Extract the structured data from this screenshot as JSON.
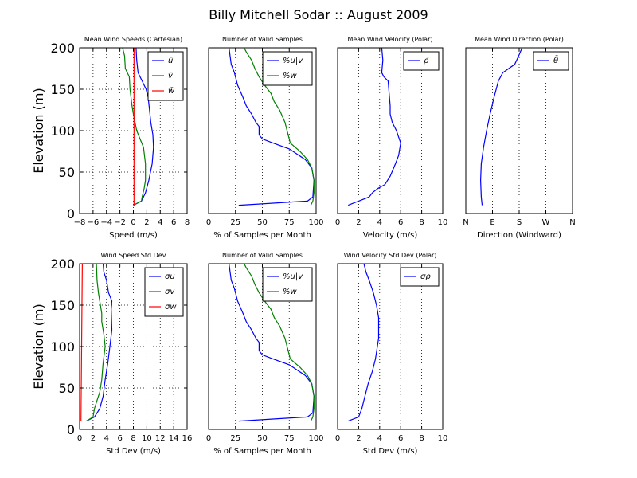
{
  "figure": {
    "title": "Billy Mitchell Sodar :: August 2009"
  },
  "colors": {
    "blue": "#0000ff",
    "green": "#008000",
    "red": "#ff0000"
  },
  "chart_data": [
    {
      "id": "p1",
      "type": "line",
      "title": "Mean Wind Speeds (Cartesian)",
      "xlabel": "Speed (m/s)",
      "ylabel": "Elevation (m)",
      "xlim": [
        -8,
        8
      ],
      "ylim": [
        0,
        200
      ],
      "xticks": [
        -8,
        -6,
        -4,
        -2,
        0,
        2,
        4,
        6,
        8
      ],
      "xtick_labels": [
        "−8",
        "−6",
        "−4",
        "−2",
        "0",
        "2",
        "4",
        "6",
        "8"
      ],
      "yticks": [
        0,
        50,
        100,
        150,
        200
      ],
      "ytick_labels": [
        "0",
        "50",
        "100",
        "150",
        "200"
      ],
      "legend": "top-right",
      "series": [
        {
          "name": "ū",
          "color": "#0000ff",
          "points": [
            [
              0,
              10
            ],
            [
              1.2,
              15
            ],
            [
              1.8,
              25
            ],
            [
              2.3,
              40
            ],
            [
              2.8,
              60
            ],
            [
              3.0,
              80
            ],
            [
              2.9,
              95
            ],
            [
              2.6,
              110
            ],
            [
              2.4,
              125
            ],
            [
              2.2,
              140
            ],
            [
              1.9,
              150
            ],
            [
              1.3,
              160
            ],
            [
              0.7,
              170
            ],
            [
              0.5,
              185
            ],
            [
              0.4,
              200
            ]
          ]
        },
        {
          "name": "v̄",
          "color": "#008000",
          "points": [
            [
              0,
              10
            ],
            [
              1.2,
              15
            ],
            [
              1.3,
              20
            ],
            [
              1.6,
              30
            ],
            [
              1.8,
              40
            ],
            [
              1.8,
              60
            ],
            [
              1.5,
              80
            ],
            [
              1.0,
              90
            ],
            [
              0.5,
              100
            ],
            [
              0,
              120
            ],
            [
              -0.2,
              130
            ],
            [
              -0.5,
              150
            ],
            [
              -0.6,
              165
            ],
            [
              -1.2,
              175
            ],
            [
              -1.3,
              190
            ],
            [
              -1.6,
              200
            ]
          ]
        },
        {
          "name": "w̄",
          "color": "#ff0000",
          "points": [
            [
              0.1,
              10
            ],
            [
              0.1,
              50
            ],
            [
              0.1,
              100
            ],
            [
              0.1,
              150
            ],
            [
              0.1,
              200
            ]
          ]
        }
      ]
    },
    {
      "id": "p2",
      "type": "line",
      "title": "Number of Valid Samples",
      "xlabel": "% of Samples per Month",
      "ylabel": "",
      "xlim": [
        0,
        100
      ],
      "ylim": [
        0,
        200
      ],
      "xticks": [
        0,
        25,
        50,
        75,
        100
      ],
      "xtick_labels": [
        "0",
        "25",
        "50",
        "75",
        "100"
      ],
      "yticks": [],
      "ytick_labels": [],
      "legend": "top-right",
      "series": [
        {
          "name": "%u|v",
          "color": "#0000ff",
          "points": [
            [
              28,
              10
            ],
            [
              92,
              15
            ],
            [
              97,
              20
            ],
            [
              98,
              40
            ],
            [
              96,
              55
            ],
            [
              90,
              65
            ],
            [
              75,
              78
            ],
            [
              60,
              85
            ],
            [
              50,
              90
            ],
            [
              47,
              95
            ],
            [
              47,
              105
            ],
            [
              44,
              110
            ],
            [
              40,
              120
            ],
            [
              35,
              130
            ],
            [
              32,
              140
            ],
            [
              27,
              155
            ],
            [
              24,
              170
            ],
            [
              21,
              180
            ],
            [
              20,
              190
            ],
            [
              19,
              200
            ]
          ]
        },
        {
          "name": "%w",
          "color": "#008000",
          "points": [
            [
              95,
              10
            ],
            [
              97,
              15
            ],
            [
              98,
              25
            ],
            [
              98,
              40
            ],
            [
              96,
              55
            ],
            [
              92,
              65
            ],
            [
              85,
              75
            ],
            [
              76,
              85
            ],
            [
              74,
              95
            ],
            [
              71,
              110
            ],
            [
              66,
              125
            ],
            [
              61,
              135
            ],
            [
              58,
              145
            ],
            [
              52,
              155
            ],
            [
              47,
              165
            ],
            [
              43,
              175
            ],
            [
              40,
              185
            ],
            [
              35,
              195
            ],
            [
              33,
              200
            ]
          ]
        }
      ]
    },
    {
      "id": "p3",
      "type": "line",
      "title": "Mean Wind Velocity (Polar)",
      "xlabel": "Velocity (m/s)",
      "ylabel": "",
      "xlim": [
        0,
        10
      ],
      "ylim": [
        0,
        200
      ],
      "xticks": [
        0,
        2,
        4,
        6,
        8,
        10
      ],
      "xtick_labels": [
        "0",
        "2",
        "4",
        "6",
        "8",
        "10"
      ],
      "yticks": [],
      "ytick_labels": [],
      "legend": "top-right",
      "series": [
        {
          "name": "ρ̄",
          "color": "#0000ff",
          "points": [
            [
              1.0,
              10
            ],
            [
              2.0,
              15
            ],
            [
              3.0,
              20
            ],
            [
              3.3,
              25
            ],
            [
              3.8,
              30
            ],
            [
              4.5,
              35
            ],
            [
              5.0,
              45
            ],
            [
              5.5,
              60
            ],
            [
              5.8,
              70
            ],
            [
              6.0,
              85
            ],
            [
              5.6,
              100
            ],
            [
              5.2,
              110
            ],
            [
              5.0,
              120
            ],
            [
              5.0,
              130
            ],
            [
              4.9,
              145
            ],
            [
              4.8,
              160
            ],
            [
              4.4,
              165
            ],
            [
              4.2,
              170
            ],
            [
              4.3,
              185
            ],
            [
              4.2,
              200
            ]
          ]
        }
      ]
    },
    {
      "id": "p4",
      "type": "line",
      "title": "Mean Wind Direction (Polar)",
      "xlabel": "Direction (Windward)",
      "ylabel": "",
      "xlim": [
        0,
        360
      ],
      "ylim": [
        0,
        200
      ],
      "xticks": [
        0,
        90,
        180,
        270,
        360
      ],
      "xtick_labels": [
        "N",
        "E",
        "S",
        "W",
        "N"
      ],
      "yticks": [],
      "ytick_labels": [],
      "legend": "top-right",
      "series": [
        {
          "name": "θ̄",
          "color": "#0000ff",
          "points": [
            [
              55,
              10
            ],
            [
              52,
              20
            ],
            [
              50,
              40
            ],
            [
              52,
              60
            ],
            [
              60,
              80
            ],
            [
              70,
              100
            ],
            [
              82,
              120
            ],
            [
              95,
              140
            ],
            [
              110,
              160
            ],
            [
              125,
              170
            ],
            [
              165,
              180
            ],
            [
              178,
              190
            ],
            [
              190,
              200
            ]
          ]
        }
      ]
    },
    {
      "id": "p5",
      "type": "line",
      "title": "Wind Speed Std Dev",
      "xlabel": "Std Dev (m/s)",
      "ylabel": "Elevation (m)",
      "xlim": [
        0,
        16
      ],
      "ylim": [
        0,
        200
      ],
      "xticks": [
        0,
        2,
        4,
        6,
        8,
        10,
        12,
        14,
        16
      ],
      "xtick_labels": [
        "0",
        "2",
        "4",
        "6",
        "8",
        "10",
        "12",
        "14",
        "16"
      ],
      "yticks": [
        0,
        50,
        100,
        150,
        200
      ],
      "ytick_labels": [
        "0",
        "50",
        "100",
        "150",
        "200"
      ],
      "legend": "top-right",
      "series": [
        {
          "name": "σu",
          "color": "#0000ff",
          "points": [
            [
              1.0,
              10
            ],
            [
              2.2,
              15
            ],
            [
              3.0,
              25
            ],
            [
              3.5,
              40
            ],
            [
              3.8,
              60
            ],
            [
              4.2,
              80
            ],
            [
              4.5,
              100
            ],
            [
              4.8,
              120
            ],
            [
              4.7,
              145
            ],
            [
              4.8,
              155
            ],
            [
              4.3,
              165
            ],
            [
              4.0,
              180
            ],
            [
              3.6,
              190
            ],
            [
              3.5,
              200
            ]
          ]
        },
        {
          "name": "σv",
          "color": "#008000",
          "points": [
            [
              1.0,
              10
            ],
            [
              2.0,
              15
            ],
            [
              2.2,
              25
            ],
            [
              2.6,
              35
            ],
            [
              3.0,
              45
            ],
            [
              3.3,
              60
            ],
            [
              3.5,
              80
            ],
            [
              3.8,
              100
            ],
            [
              3.6,
              115
            ],
            [
              3.3,
              130
            ],
            [
              3.3,
              140
            ],
            [
              3.0,
              155
            ],
            [
              2.8,
              165
            ],
            [
              2.6,
              180
            ],
            [
              2.5,
              200
            ]
          ]
        },
        {
          "name": "σw",
          "color": "#ff0000",
          "points": [
            [
              0.2,
              10
            ],
            [
              0.3,
              100
            ],
            [
              0.4,
              200
            ]
          ]
        }
      ]
    },
    {
      "id": "p6",
      "type": "line",
      "title": "Number of Valid Samples",
      "xlabel": "% of Samples per Month",
      "ylabel": "",
      "xlim": [
        0,
        100
      ],
      "ylim": [
        0,
        200
      ],
      "xticks": [
        0,
        25,
        50,
        75,
        100
      ],
      "xtick_labels": [
        "0",
        "25",
        "50",
        "75",
        "100"
      ],
      "yticks": [],
      "ytick_labels": [],
      "legend": "top-right",
      "series": [
        {
          "name": "%u|v",
          "color": "#0000ff",
          "points": [
            [
              28,
              10
            ],
            [
              92,
              15
            ],
            [
              97,
              20
            ],
            [
              98,
              40
            ],
            [
              96,
              55
            ],
            [
              90,
              65
            ],
            [
              75,
              78
            ],
            [
              60,
              85
            ],
            [
              50,
              90
            ],
            [
              47,
              95
            ],
            [
              47,
              105
            ],
            [
              44,
              110
            ],
            [
              40,
              120
            ],
            [
              35,
              130
            ],
            [
              32,
              140
            ],
            [
              27,
              155
            ],
            [
              24,
              170
            ],
            [
              21,
              180
            ],
            [
              20,
              190
            ],
            [
              19,
              200
            ]
          ]
        },
        {
          "name": "%w",
          "color": "#008000",
          "points": [
            [
              95,
              10
            ],
            [
              97,
              15
            ],
            [
              98,
              25
            ],
            [
              98,
              40
            ],
            [
              96,
              55
            ],
            [
              92,
              65
            ],
            [
              85,
              75
            ],
            [
              76,
              85
            ],
            [
              74,
              95
            ],
            [
              71,
              110
            ],
            [
              66,
              125
            ],
            [
              61,
              135
            ],
            [
              58,
              145
            ],
            [
              52,
              155
            ],
            [
              47,
              165
            ],
            [
              43,
              175
            ],
            [
              40,
              185
            ],
            [
              35,
              195
            ],
            [
              33,
              200
            ]
          ]
        }
      ]
    },
    {
      "id": "p7",
      "type": "line",
      "title": "Wind Velocity Std Dev (Polar)",
      "xlabel": "Std Dev (m/s)",
      "ylabel": "",
      "xlim": [
        0,
        10
      ],
      "ylim": [
        0,
        200
      ],
      "xticks": [
        0,
        2,
        4,
        6,
        8,
        10
      ],
      "xtick_labels": [
        "0",
        "2",
        "4",
        "6",
        "8",
        "10"
      ],
      "yticks": [],
      "ytick_labels": [],
      "legend": "top-right",
      "series": [
        {
          "name": "σρ",
          "color": "#0000ff",
          "points": [
            [
              1.0,
              10
            ],
            [
              2.0,
              15
            ],
            [
              2.3,
              25
            ],
            [
              2.6,
              40
            ],
            [
              2.9,
              55
            ],
            [
              3.3,
              70
            ],
            [
              3.6,
              85
            ],
            [
              3.9,
              110
            ],
            [
              3.9,
              135
            ],
            [
              3.7,
              150
            ],
            [
              3.4,
              165
            ],
            [
              3.0,
              180
            ],
            [
              2.7,
              190
            ],
            [
              2.5,
              200
            ]
          ]
        }
      ]
    }
  ]
}
